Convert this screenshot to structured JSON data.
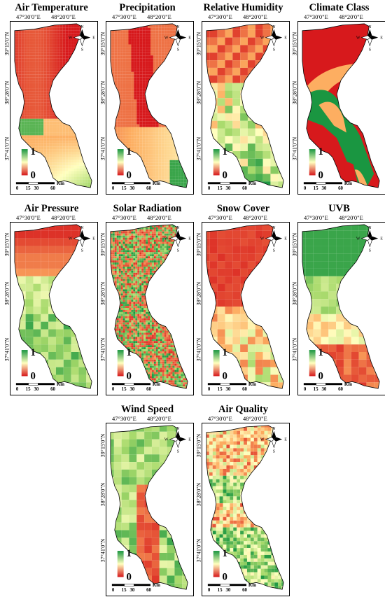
{
  "lon_labels": [
    "47°30'0\"E",
    "48°20'0\"E"
  ],
  "lat_labels": [
    "39°15'0\"N",
    "38°28'0\"N",
    "37°41'0\"N"
  ],
  "legend": {
    "high": "1",
    "low": "0"
  },
  "scale_bar": {
    "ticks": [
      "0",
      "15",
      "30",
      "60"
    ],
    "unit": "Km"
  },
  "north_arrow": {
    "n": "N",
    "s": "S",
    "e": "E",
    "w": "W"
  },
  "panels": [
    {
      "title": "Air Temperature",
      "scheme": "air-temperature"
    },
    {
      "title": "Precipitation",
      "scheme": "precipitation"
    },
    {
      "title": "Relative Humidity",
      "scheme": "relative-humidity"
    },
    {
      "title": "Climate Class",
      "scheme": "climate-class"
    },
    {
      "title": "Air Pressure",
      "scheme": "air-pressure"
    },
    {
      "title": "Solar Radiation",
      "scheme": "solar-radiation"
    },
    {
      "title": "Snow Cover",
      "scheme": "snow-cover"
    },
    {
      "title": "UVB",
      "scheme": "uvb"
    },
    {
      "title": "Wind Speed",
      "scheme": "wind-speed"
    },
    {
      "title": "Air Quality",
      "scheme": "air-quality"
    }
  ],
  "colors": {
    "high": "#1a9641",
    "mid": "#ffffbf",
    "low": "#d7191c"
  }
}
